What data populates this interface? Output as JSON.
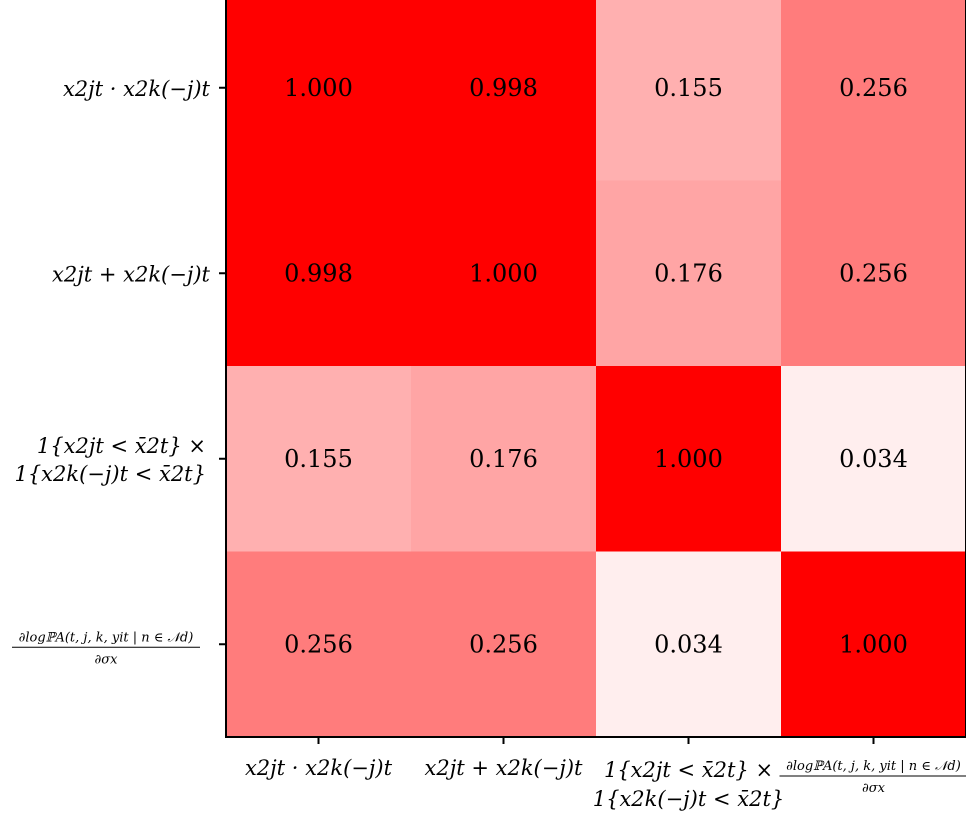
{
  "chart_data": {
    "type": "heatmap",
    "title": "",
    "xlabel": "",
    "ylabel": "",
    "colormap": {
      "low": "#ffffff",
      "high": "#ff0000"
    },
    "vmin": 0,
    "vmax": 0.5,
    "categories": [
      {
        "id": "product",
        "lines": [
          "x2jt · x2k(−j)t"
        ]
      },
      {
        "id": "sum",
        "lines": [
          "x2jt + x2k(−j)t"
        ]
      },
      {
        "id": "indicator",
        "lines": [
          "1{x2jt < x̄2t} ×",
          "1{x2k(−j)t < x̄2t}"
        ]
      },
      {
        "id": "derivative",
        "lines": [
          "∂logℙA(t, j, k, yit | n ∈ 𝒩d)",
          "∂σx"
        ],
        "fraction": true
      }
    ],
    "values": [
      [
        1.0,
        0.998,
        0.155,
        0.256
      ],
      [
        0.998,
        1.0,
        0.176,
        0.256
      ],
      [
        0.155,
        0.176,
        1.0,
        0.034
      ],
      [
        0.256,
        0.256,
        0.034,
        1.0
      ]
    ],
    "cell_labels": [
      [
        "1.000",
        "0.998",
        "0.155",
        "0.256"
      ],
      [
        "0.998",
        "1.000",
        "0.176",
        "0.256"
      ],
      [
        "0.155",
        "0.176",
        "1.000",
        "0.034"
      ],
      [
        "0.256",
        "0.256",
        "0.034",
        "1.000"
      ]
    ]
  }
}
